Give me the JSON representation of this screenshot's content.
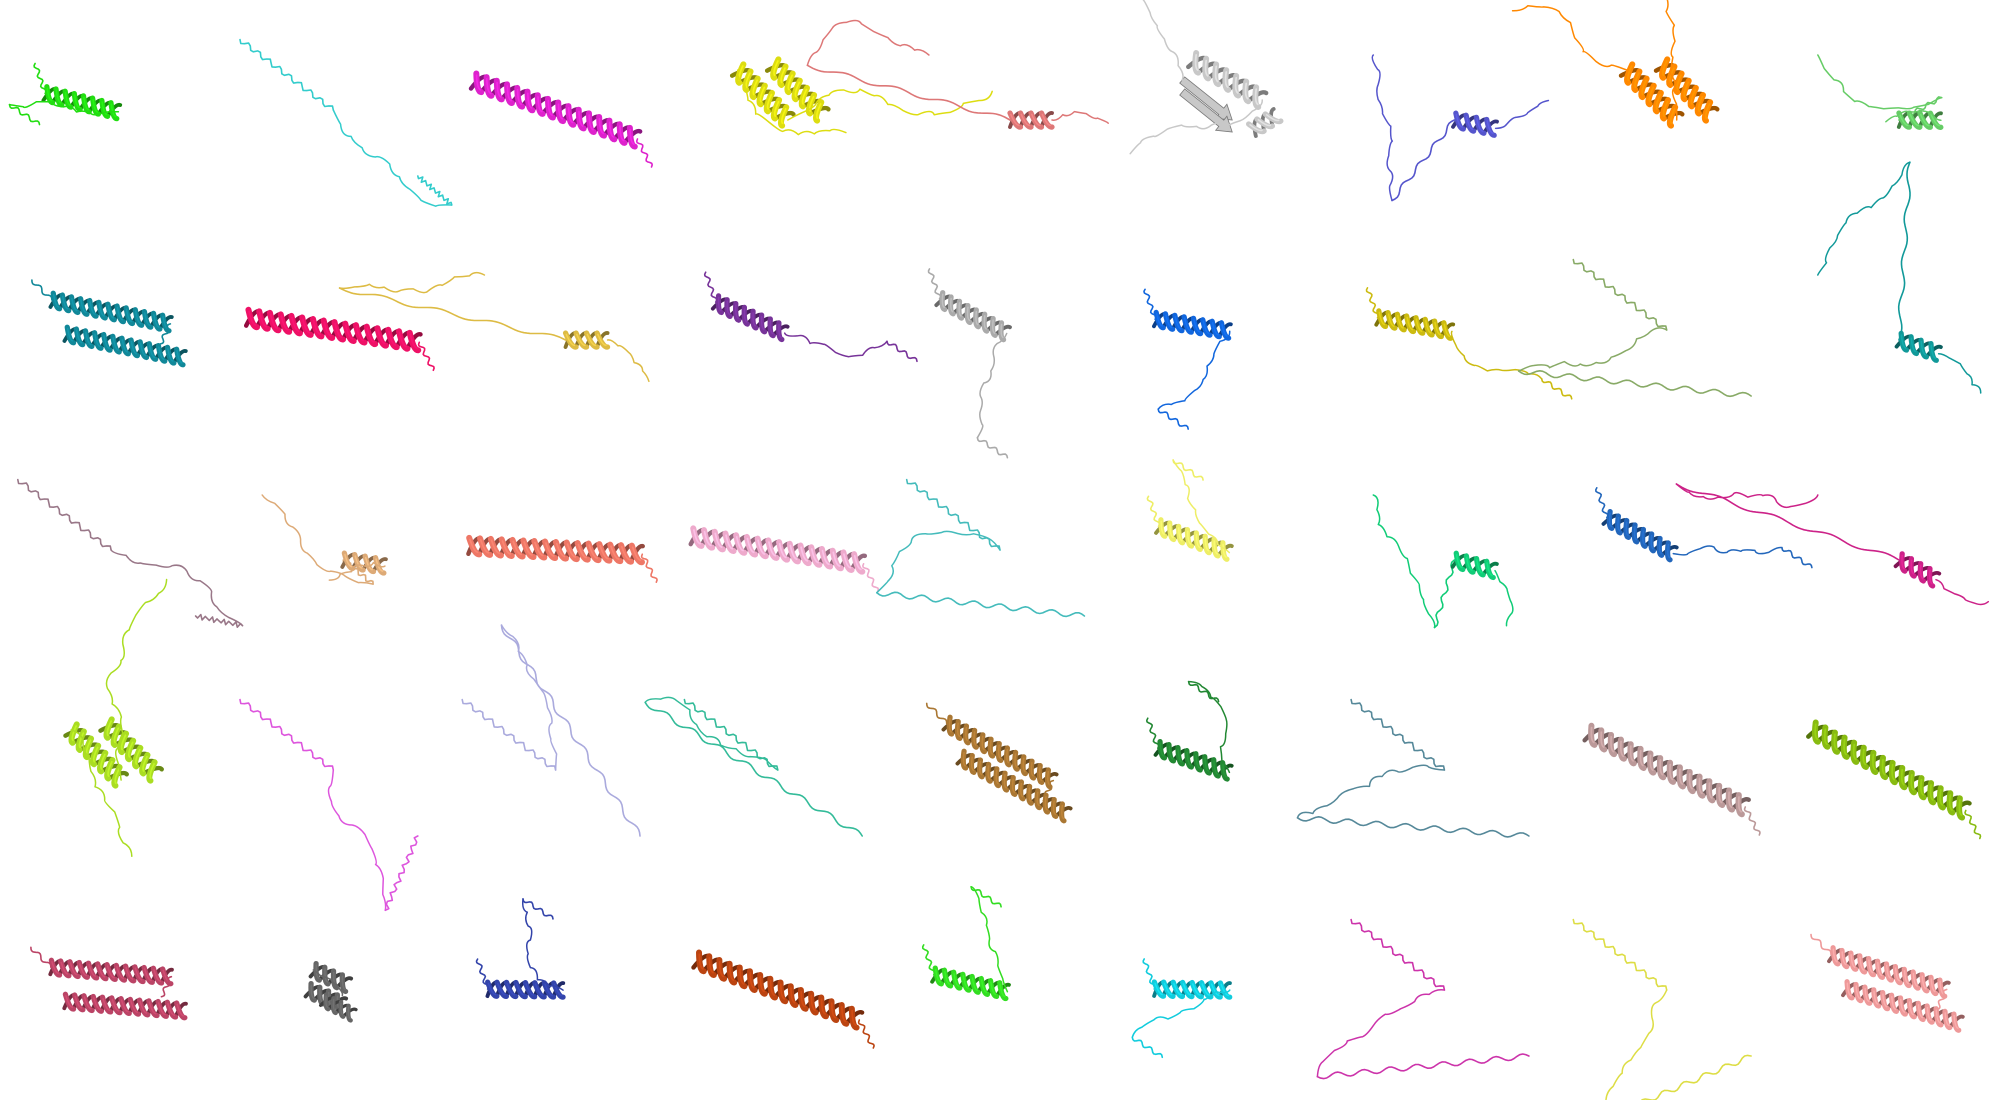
{
  "figure": {
    "rows": 5,
    "cols": 9,
    "background": "#ffffff",
    "structures": [
      {
        "color": "#22dd11",
        "kind": "helix-coil"
      },
      {
        "color": "#33cccc",
        "kind": "coil"
      },
      {
        "color": "#dd22cc",
        "kind": "long-helix"
      },
      {
        "color": "#dddd11",
        "kind": "helix-tangle"
      },
      {
        "color": "#dd7777",
        "kind": "coil-helix"
      },
      {
        "color": "#c8c8c8",
        "kind": "sheet-helix"
      },
      {
        "color": "#5555cc",
        "kind": "coil-helix"
      },
      {
        "color": "#ff8800",
        "kind": "helix-tangle"
      },
      {
        "color": "#66cc66",
        "kind": "coil-helix"
      },
      {
        "color": "#118899",
        "kind": "double-helix"
      },
      {
        "color": "#ee1166",
        "kind": "long-helix"
      },
      {
        "color": "#ddbb44",
        "kind": "coil-helix"
      },
      {
        "color": "#773399",
        "kind": "helix-coil"
      },
      {
        "color": "#aaaaaa",
        "kind": "helix-coil"
      },
      {
        "color": "#1166dd",
        "kind": "helix-coil"
      },
      {
        "color": "#ccbb11",
        "kind": "helix-coil"
      },
      {
        "color": "#88aa66",
        "kind": "coil"
      },
      {
        "color": "#119999",
        "kind": "coil-helix"
      },
      {
        "color": "#997788",
        "kind": "coil"
      },
      {
        "color": "#ddaa77",
        "kind": "coil-helix"
      },
      {
        "color": "#ee7766",
        "kind": "long-helix"
      },
      {
        "color": "#eeaacc",
        "kind": "long-helix"
      },
      {
        "color": "#44bbbb",
        "kind": "coil"
      },
      {
        "color": "#eeee66",
        "kind": "helix-coil"
      },
      {
        "color": "#11cc77",
        "kind": "coil-helix"
      },
      {
        "color": "#2266bb",
        "kind": "helix-coil"
      },
      {
        "color": "#cc2288",
        "kind": "coil-helix"
      },
      {
        "color": "#aadd22",
        "kind": "helix-tangle"
      },
      {
        "color": "#dd55dd",
        "kind": "coil"
      },
      {
        "color": "#aaaadd",
        "kind": "coil"
      },
      {
        "color": "#33bb99",
        "kind": "coil"
      },
      {
        "color": "#aa7733",
        "kind": "double-helix"
      },
      {
        "color": "#228833",
        "kind": "helix-coil"
      },
      {
        "color": "#558899",
        "kind": "coil"
      },
      {
        "color": "#bb9999",
        "kind": "long-helix"
      },
      {
        "color": "#88bb11",
        "kind": "long-helix"
      },
      {
        "color": "#bb4466",
        "kind": "double-helix"
      },
      {
        "color": "#666666",
        "kind": "compact"
      },
      {
        "color": "#3344aa",
        "kind": "helix-coil"
      },
      {
        "color": "#bb4411",
        "kind": "long-helix"
      },
      {
        "color": "#33dd22",
        "kind": "helix-coil"
      },
      {
        "color": "#11ccdd",
        "kind": "helix-coil"
      },
      {
        "color": "#cc33aa",
        "kind": "coil"
      },
      {
        "color": "#dddd44",
        "kind": "coil"
      },
      {
        "color": "#ee9999",
        "kind": "double-helix"
      }
    ]
  }
}
